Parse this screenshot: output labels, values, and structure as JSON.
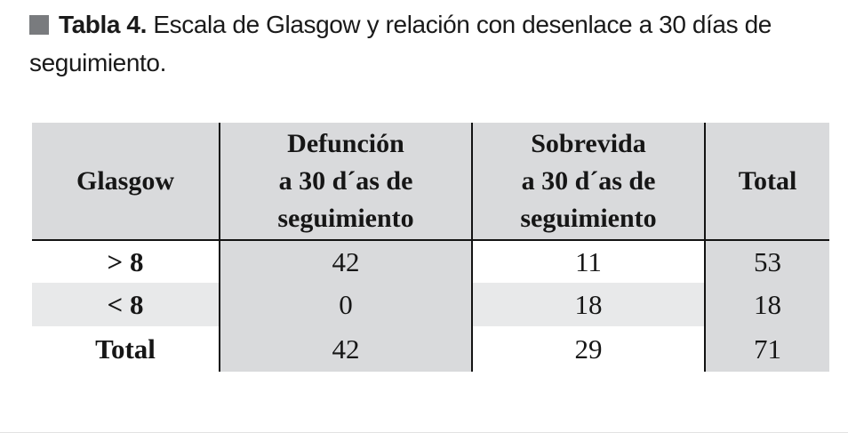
{
  "caption": {
    "label": "Tabla 4.",
    "line1": "Escala de Glasgow y relación con desenlace a 30 días de",
    "line2": "seguimiento."
  },
  "table": {
    "columns": [
      "Glasgow",
      "Defunción\na 30 d´as de\nseguimiento",
      "Sobrevida\na 30 d´as de\nseguimiento",
      "Total"
    ],
    "rows": [
      [
        "> 8",
        "42",
        "11",
        "53"
      ],
      [
        "< 8",
        "0",
        "18",
        "18"
      ],
      [
        "Total",
        "42",
        "29",
        "71"
      ]
    ]
  },
  "colors": {
    "shaded_cell": "#d9dadc",
    "row_stripe": "#e8e9ea",
    "caption_marker": "#797b7e",
    "rule": "#131313"
  }
}
